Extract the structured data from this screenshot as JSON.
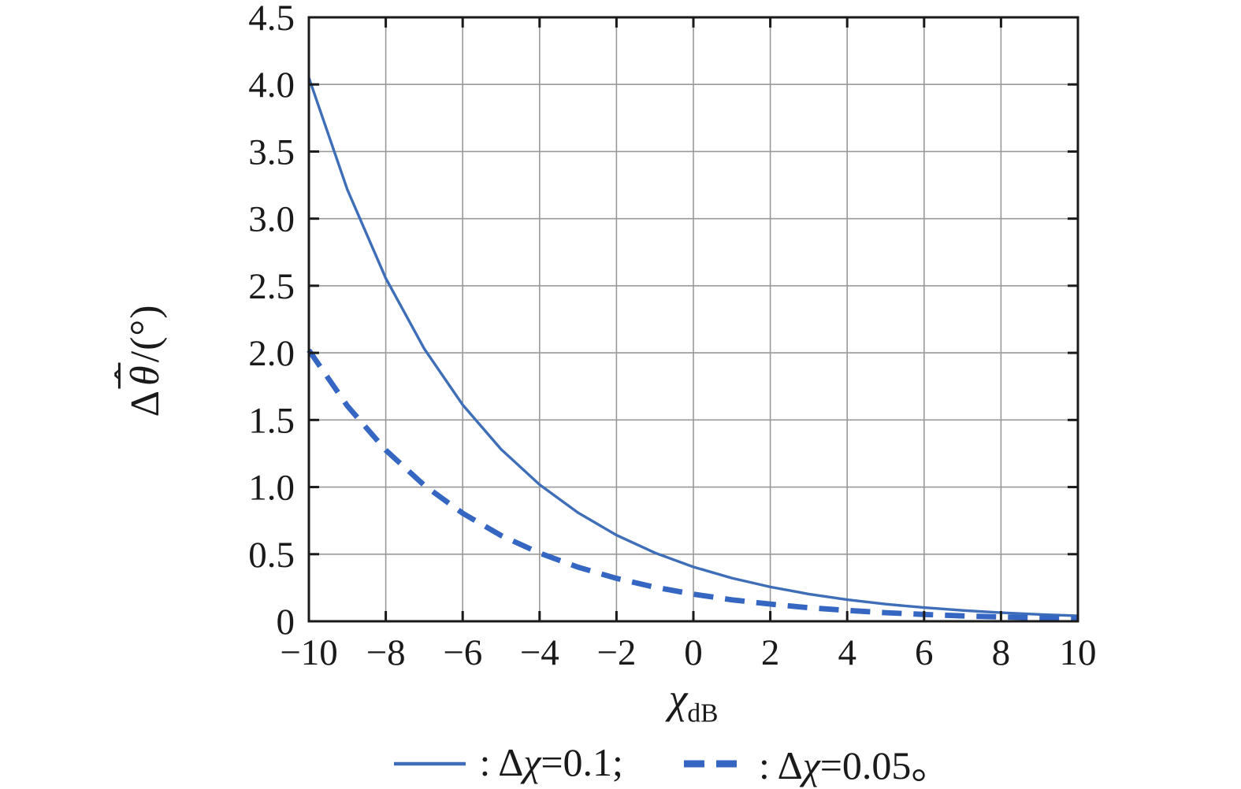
{
  "colors": {
    "background": "#ffffff",
    "axis": "#1a1a1a",
    "grid": "#999999",
    "text": "#1a1a1a",
    "solid_line": "#3e6eb8",
    "dashed_line": "#3566c2"
  },
  "axis_y": {
    "delta": "Δ",
    "hat": "ˆ",
    "theta": "θ",
    "unit": "/(°)"
  },
  "axis_x": {
    "symbol": "χ",
    "subscript": "dB"
  },
  "legend": {
    "items": [
      {
        "colon": ": ",
        "delta": "Δ",
        "chi": "χ",
        "rest": "=0.1;"
      },
      {
        "colon": ": ",
        "delta": "Δ",
        "chi": "χ",
        "rest": "=0.05。"
      }
    ]
  },
  "chart_data": {
    "type": "line",
    "title": "",
    "xlabel": "χ_dB",
    "ylabel": "Δθ̂/(°)",
    "xlim": [
      -10,
      10
    ],
    "ylim": [
      0,
      4.5
    ],
    "grid": true,
    "legend_position": "below",
    "xticks": [
      -10,
      -8,
      -6,
      -4,
      -2,
      0,
      2,
      4,
      6,
      8,
      10
    ],
    "xtick_labels": [
      "−10",
      "−8",
      "−6",
      "−4",
      "−2",
      "0",
      "2",
      "4",
      "6",
      "8",
      "10"
    ],
    "yticks": [
      0,
      0.5,
      1.0,
      1.5,
      2.0,
      2.5,
      3.0,
      3.5,
      4.0,
      4.5
    ],
    "ytick_labels": [
      "0",
      "0.5",
      "1.0",
      "1.5",
      "2.0",
      "2.5",
      "3.0",
      "3.5",
      "4.0",
      "4.5"
    ],
    "x": [
      -10,
      -9,
      -8,
      -7,
      -6,
      -5,
      -4,
      -3,
      -2,
      -1,
      0,
      1,
      2,
      3,
      4,
      5,
      6,
      7,
      8,
      9,
      10
    ],
    "series": [
      {
        "name": "Δχ=0.1",
        "style": "solid",
        "color": "#3e6eb8",
        "width": 3.4,
        "values": [
          4.05,
          3.217,
          2.556,
          2.031,
          1.613,
          1.281,
          1.018,
          0.809,
          0.642,
          0.51,
          0.405,
          0.322,
          0.256,
          0.203,
          0.161,
          0.128,
          0.102,
          0.081,
          0.064,
          0.051,
          0.041
        ]
      },
      {
        "name": "Δχ=0.05",
        "style": "dashed",
        "color": "#3566c2",
        "width": 6.8,
        "dash": "25 15",
        "values": [
          2.02,
          1.605,
          1.275,
          1.013,
          0.805,
          0.639,
          0.508,
          0.403,
          0.32,
          0.254,
          0.202,
          0.16,
          0.128,
          0.101,
          0.081,
          0.064,
          0.051,
          0.04,
          0.032,
          0.026,
          0.02
        ]
      }
    ]
  }
}
